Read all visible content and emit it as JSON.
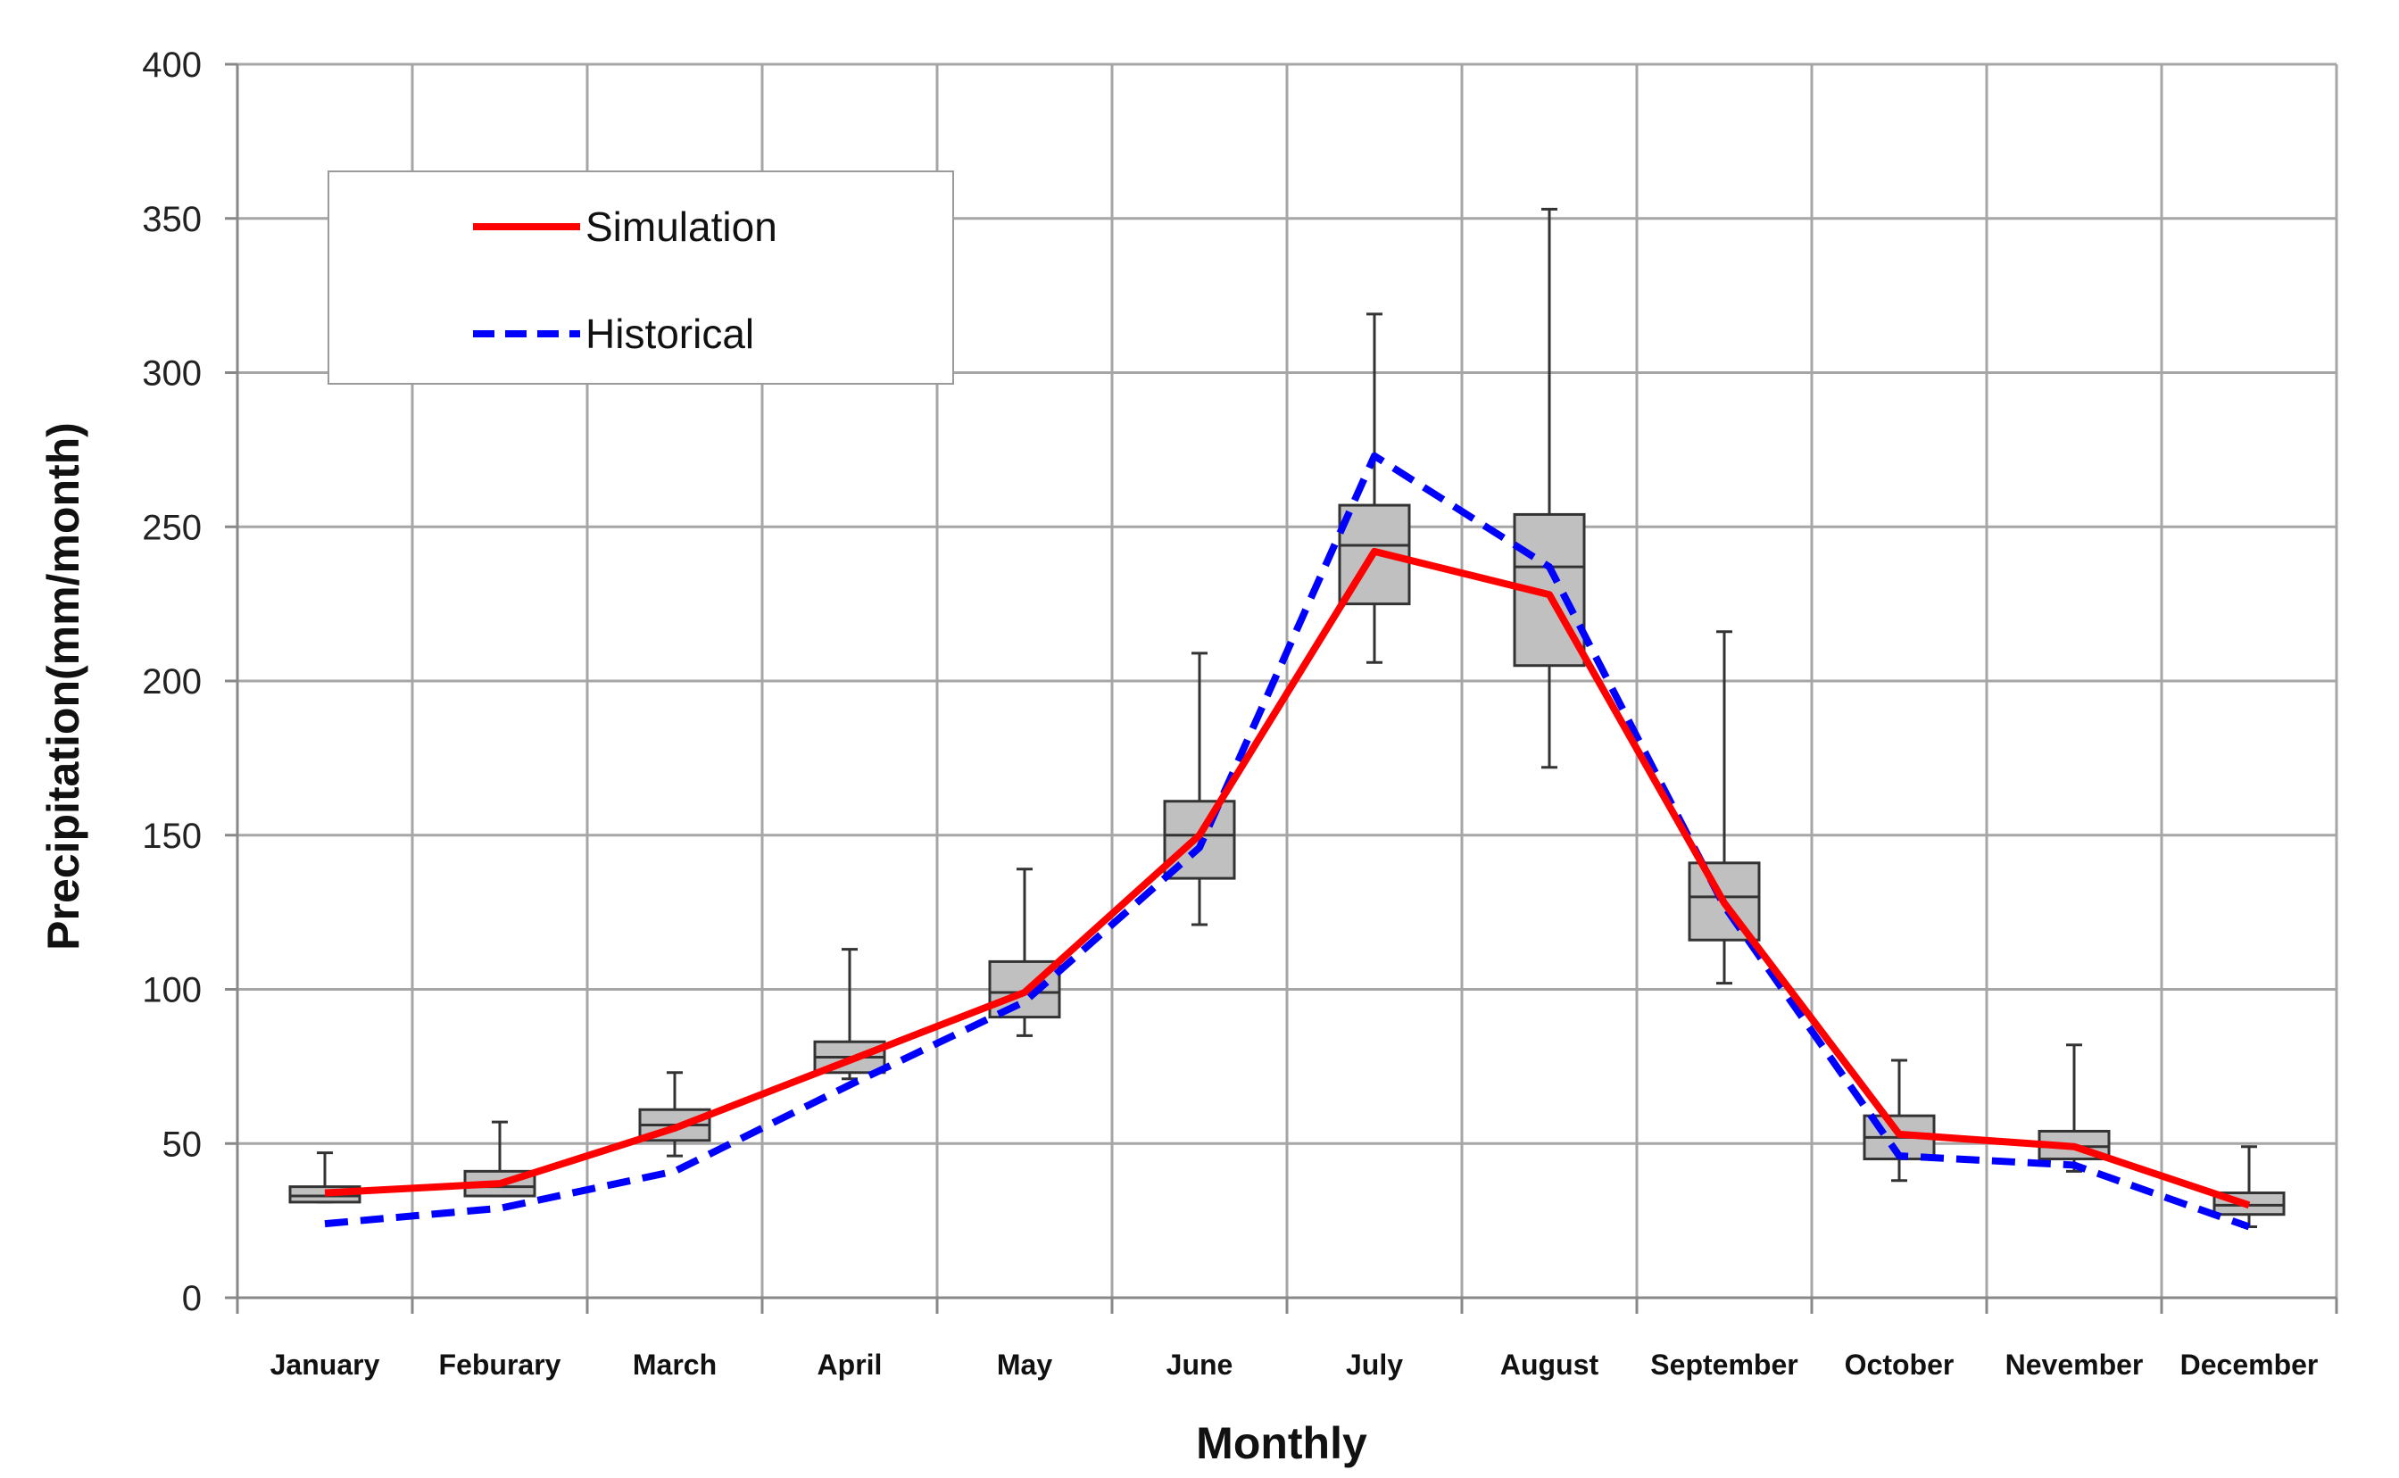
{
  "chart_data": {
    "type": "line",
    "title": "",
    "xlabel": "Monthly",
    "ylabel": "Precipitation(mm/month)",
    "ylim": [
      0,
      400
    ],
    "yticks": [
      0,
      50,
      100,
      150,
      200,
      250,
      300,
      350,
      400
    ],
    "grid": true,
    "legend_position": "top-left",
    "categories": [
      "January",
      "Feburary",
      "March",
      "April",
      "May",
      "June",
      "July",
      "August",
      "September",
      "October",
      "Nevember",
      "December"
    ],
    "series": [
      {
        "name": "Simulation",
        "style": "solid",
        "color": "#ff0000",
        "values": [
          34,
          37,
          55,
          77,
          99,
          150,
          242,
          228,
          128,
          53,
          49,
          30
        ]
      },
      {
        "name": "Historical",
        "style": "dashed",
        "color": "#0000ff",
        "values": [
          24,
          29,
          41,
          69,
          96,
          146,
          273,
          237,
          127,
          46,
          43,
          23
        ]
      }
    ],
    "boxplot": [
      {
        "category": "January",
        "min": 31,
        "q1": 31,
        "median": 33,
        "q3": 36,
        "max": 47
      },
      {
        "category": "Feburary",
        "min": 33,
        "q1": 33,
        "median": 36,
        "q3": 41,
        "max": 57
      },
      {
        "category": "March",
        "min": 46,
        "q1": 51,
        "median": 56,
        "q3": 61,
        "max": 73
      },
      {
        "category": "April",
        "min": 71,
        "q1": 73,
        "median": 78,
        "q3": 83,
        "max": 113
      },
      {
        "category": "May",
        "min": 85,
        "q1": 91,
        "median": 99,
        "q3": 109,
        "max": 139
      },
      {
        "category": "June",
        "min": 121,
        "q1": 136,
        "median": 150,
        "q3": 161,
        "max": 209
      },
      {
        "category": "July",
        "min": 206,
        "q1": 225,
        "median": 244,
        "q3": 257,
        "max": 319
      },
      {
        "category": "August",
        "min": 172,
        "q1": 205,
        "median": 237,
        "q3": 254,
        "max": 353
      },
      {
        "category": "September",
        "min": 102,
        "q1": 116,
        "median": 130,
        "q3": 141,
        "max": 216
      },
      {
        "category": "October",
        "min": 38,
        "q1": 45,
        "median": 52,
        "q3": 59,
        "max": 77
      },
      {
        "category": "Nevember",
        "min": 41,
        "q1": 45,
        "median": 49,
        "q3": 54,
        "max": 82
      },
      {
        "category": "December",
        "min": 23,
        "q1": 27,
        "median": 30,
        "q3": 34,
        "max": 49
      }
    ]
  },
  "colors": {
    "grid": "#a6a6a6",
    "box_fill": "#c0c0c0",
    "box_stroke": "#333333",
    "axis": "#888888"
  }
}
